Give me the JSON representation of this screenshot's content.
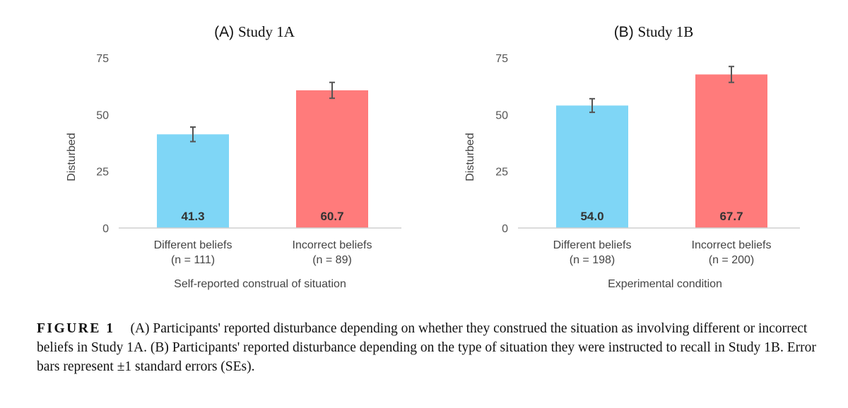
{
  "chart_data": [
    {
      "type": "bar",
      "title_prefix": "(A)",
      "title_rest": "Study 1A",
      "ylabel": "Disturbed",
      "xlabel": "Self-reported construal of situation",
      "ylim": [
        0,
        75
      ],
      "yticks": [
        0,
        25,
        50,
        75
      ],
      "categories": [
        "Different beliefs",
        "Incorrect beliefs"
      ],
      "category_sub": [
        "(n = 111)",
        "(n = 89)"
      ],
      "values": [
        41.3,
        60.7
      ],
      "value_labels": [
        "41.3",
        "60.7"
      ],
      "errors": [
        3.2,
        3.5
      ],
      "colors": [
        "#7fd6f6",
        "#ff7b7b"
      ],
      "grid": false
    },
    {
      "type": "bar",
      "title_prefix": "(B)",
      "title_rest": "Study 1B",
      "ylabel": "Disturbed",
      "xlabel": "Experimental condition",
      "ylim": [
        0,
        75
      ],
      "yticks": [
        0,
        25,
        50,
        75
      ],
      "categories": [
        "Different beliefs",
        "Incorrect beliefs"
      ],
      "category_sub": [
        "(n = 198)",
        "(n = 200)"
      ],
      "values": [
        54.0,
        67.7
      ],
      "value_labels": [
        "54.0",
        "67.7"
      ],
      "errors": [
        3.0,
        3.5
      ],
      "colors": [
        "#7fd6f6",
        "#ff7b7b"
      ],
      "grid": false
    }
  ],
  "caption": {
    "label": "FIGURE 1",
    "text": "(A) Participants' reported disturbance depending on whether they construed the situation as involving different or incorrect beliefs in Study 1A. (B) Participants' reported disturbance depending on the type of situation they were instructed to recall in Study 1B. Error bars represent ±1 standard errors (SEs)."
  }
}
